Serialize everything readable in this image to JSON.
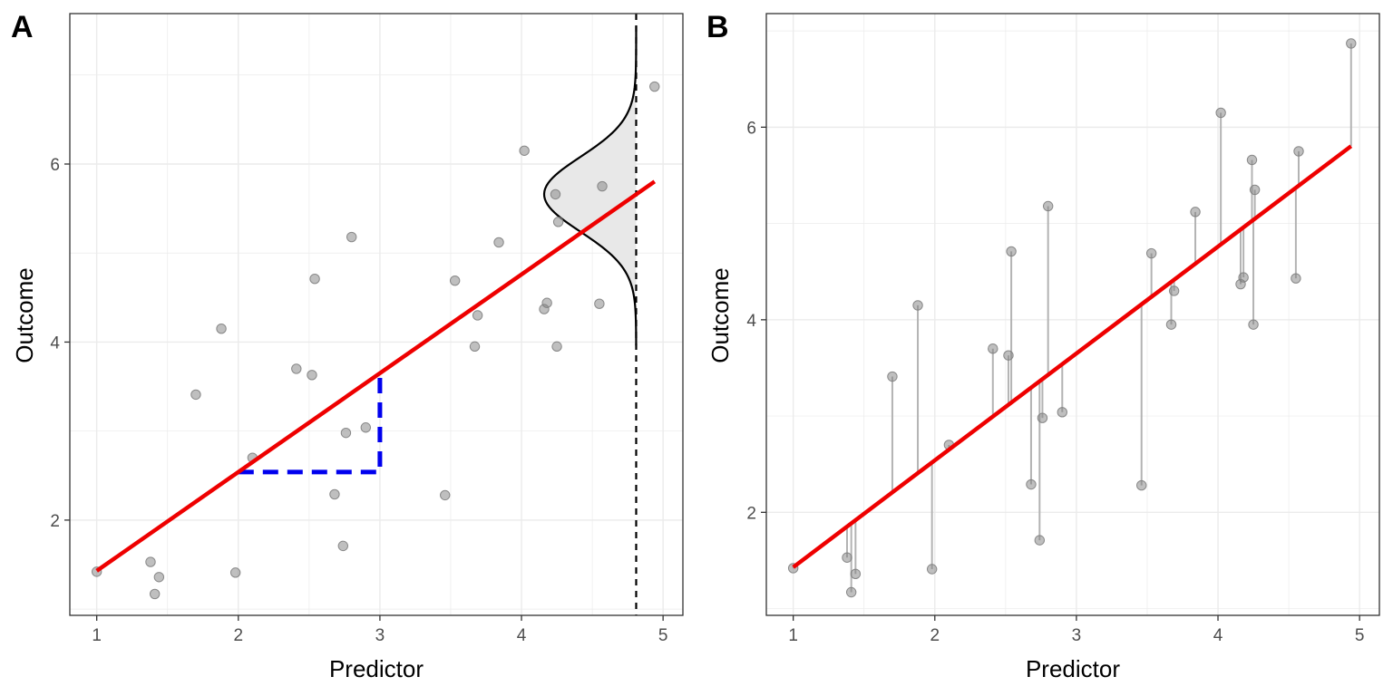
{
  "colors": {
    "fit_line": "#ee0000",
    "points": "#808080",
    "slope_guide": "#0000ee",
    "residual_segments": "#b3b3b3",
    "density_fill": "#e8e8e8",
    "grid_major": "#ebebeb",
    "panel_border": "#333333"
  },
  "chart_data": [
    {
      "type": "scatter",
      "panel_label": "A",
      "title": "",
      "xlabel": "Predictor",
      "ylabel": "Outcome",
      "xlim": [
        0.81,
        5.14
      ],
      "ylim": [
        0.93,
        7.69
      ],
      "x_ticks": [
        1,
        2,
        3,
        4,
        5
      ],
      "y_ticks": [
        2,
        4,
        6
      ],
      "grid": true,
      "legend": "none",
      "fit_line": {
        "intercept": 0.32,
        "slope": 1.11,
        "x_range": [
          1,
          4.94
        ]
      },
      "slope_guide": {
        "from": [
          2,
          2.54
        ],
        "corner": [
          3,
          2.54
        ],
        "to": [
          3,
          3.65
        ],
        "style": "dashed"
      },
      "vertical_reference": {
        "x": 4.81,
        "style": "dashed"
      },
      "density_curve": {
        "mean": 5.66,
        "sd": 0.42,
        "baseline_x": 4.81,
        "y_range": [
          3.96,
          7.55
        ],
        "peak_width": 0.65
      },
      "points": [
        {
          "x": 1.0,
          "y": 1.42
        },
        {
          "x": 1.38,
          "y": 1.53
        },
        {
          "x": 1.41,
          "y": 1.17
        },
        {
          "x": 1.44,
          "y": 1.36
        },
        {
          "x": 1.7,
          "y": 3.41
        },
        {
          "x": 1.88,
          "y": 4.15
        },
        {
          "x": 1.98,
          "y": 1.41
        },
        {
          "x": 2.1,
          "y": 2.7
        },
        {
          "x": 2.41,
          "y": 3.7
        },
        {
          "x": 2.52,
          "y": 3.63
        },
        {
          "x": 2.54,
          "y": 4.71
        },
        {
          "x": 2.68,
          "y": 2.29
        },
        {
          "x": 2.74,
          "y": 1.71
        },
        {
          "x": 2.76,
          "y": 2.98
        },
        {
          "x": 2.8,
          "y": 5.18
        },
        {
          "x": 2.9,
          "y": 3.04
        },
        {
          "x": 3.46,
          "y": 2.28
        },
        {
          "x": 3.53,
          "y": 4.69
        },
        {
          "x": 3.67,
          "y": 3.95
        },
        {
          "x": 3.69,
          "y": 4.3
        },
        {
          "x": 3.84,
          "y": 5.12
        },
        {
          "x": 4.02,
          "y": 6.15
        },
        {
          "x": 4.16,
          "y": 4.37
        },
        {
          "x": 4.18,
          "y": 4.44
        },
        {
          "x": 4.24,
          "y": 5.66
        },
        {
          "x": 4.25,
          "y": 3.95
        },
        {
          "x": 4.26,
          "y": 5.35
        },
        {
          "x": 4.55,
          "y": 4.43
        },
        {
          "x": 4.57,
          "y": 5.75
        },
        {
          "x": 4.94,
          "y": 6.87
        }
      ]
    },
    {
      "type": "scatter",
      "panel_label": "B",
      "title": "",
      "xlabel": "Predictor",
      "ylabel": "Outcome",
      "xlim": [
        0.81,
        5.14
      ],
      "ylim": [
        0.93,
        7.18
      ],
      "x_ticks": [
        1,
        2,
        3,
        4,
        5
      ],
      "y_ticks": [
        2,
        4,
        6
      ],
      "grid": true,
      "legend": "none",
      "fit_line": {
        "intercept": 0.32,
        "slope": 1.11,
        "x_range": [
          1,
          4.94
        ]
      },
      "residuals": true,
      "points": [
        {
          "x": 1.0,
          "y": 1.42
        },
        {
          "x": 1.38,
          "y": 1.53
        },
        {
          "x": 1.41,
          "y": 1.17
        },
        {
          "x": 1.44,
          "y": 1.36
        },
        {
          "x": 1.7,
          "y": 3.41
        },
        {
          "x": 1.88,
          "y": 4.15
        },
        {
          "x": 1.98,
          "y": 1.41
        },
        {
          "x": 2.1,
          "y": 2.7
        },
        {
          "x": 2.41,
          "y": 3.7
        },
        {
          "x": 2.52,
          "y": 3.63
        },
        {
          "x": 2.54,
          "y": 4.71
        },
        {
          "x": 2.68,
          "y": 2.29
        },
        {
          "x": 2.74,
          "y": 1.71
        },
        {
          "x": 2.76,
          "y": 2.98
        },
        {
          "x": 2.8,
          "y": 5.18
        },
        {
          "x": 2.9,
          "y": 3.04
        },
        {
          "x": 3.46,
          "y": 2.28
        },
        {
          "x": 3.53,
          "y": 4.69
        },
        {
          "x": 3.67,
          "y": 3.95
        },
        {
          "x": 3.69,
          "y": 4.3
        },
        {
          "x": 3.84,
          "y": 5.12
        },
        {
          "x": 4.02,
          "y": 6.15
        },
        {
          "x": 4.16,
          "y": 4.37
        },
        {
          "x": 4.18,
          "y": 4.44
        },
        {
          "x": 4.24,
          "y": 5.66
        },
        {
          "x": 4.25,
          "y": 3.95
        },
        {
          "x": 4.26,
          "y": 5.35
        },
        {
          "x": 4.55,
          "y": 4.43
        },
        {
          "x": 4.57,
          "y": 5.75
        },
        {
          "x": 4.94,
          "y": 6.87
        }
      ]
    }
  ]
}
